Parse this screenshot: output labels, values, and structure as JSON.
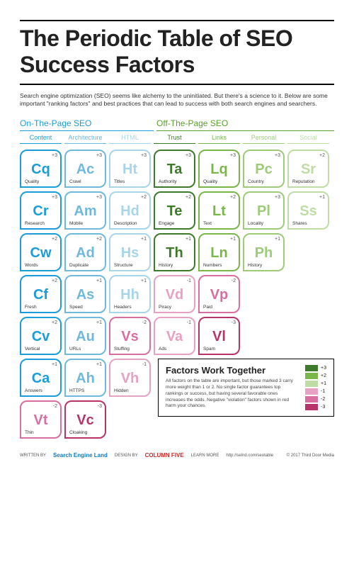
{
  "title": "The Periodic Table of SEO Success Factors",
  "intro": "Search engine optimization (SEO) seems like alchemy to the uninitiated. But there's a science to it. Below are some important \"ranking factors\" and best practices that can lead to success with both search engines and searchers.",
  "sections": {
    "on": {
      "label": "On-The-Page SEO",
      "color": "#1b9dd9"
    },
    "off": {
      "label": "Off-The-Page SEO",
      "color": "#5aa02c"
    }
  },
  "columns": [
    {
      "label": "Content",
      "color": "#1b9dd9"
    },
    {
      "label": "Architecture",
      "color": "#6fb9dc"
    },
    {
      "label": "HTML",
      "color": "#a8d5ea"
    },
    {
      "label": "Trust",
      "color": "#3d7a2a"
    },
    {
      "label": "Links",
      "color": "#7ab648"
    },
    {
      "label": "Personal",
      "color": "#9ecb7a"
    },
    {
      "label": "Social",
      "color": "#bfdca5"
    }
  ],
  "grid": [
    [
      {
        "sym": "Cq",
        "lab": "Quality",
        "wt": "+3",
        "color": "#1b9dd9"
      },
      {
        "sym": "Ac",
        "lab": "Crawl",
        "wt": "+3",
        "color": "#6fb9dc"
      },
      {
        "sym": "Ht",
        "lab": "Titles",
        "wt": "+3",
        "color": "#a8d5ea"
      },
      {
        "sym": "Ta",
        "lab": "Authority",
        "wt": "+3",
        "color": "#3d7a2a"
      },
      {
        "sym": "Lq",
        "lab": "Quality",
        "wt": "+3",
        "color": "#7ab648"
      },
      {
        "sym": "Pc",
        "lab": "Country",
        "wt": "+3",
        "color": "#9ecb7a"
      },
      {
        "sym": "Sr",
        "lab": "Reputation",
        "wt": "+2",
        "color": "#bfdca5"
      }
    ],
    [
      {
        "sym": "Cr",
        "lab": "Research",
        "wt": "+3",
        "color": "#1b9dd9"
      },
      {
        "sym": "Am",
        "lab": "Mobile",
        "wt": "+3",
        "color": "#6fb9dc"
      },
      {
        "sym": "Hd",
        "lab": "Description",
        "wt": "+2",
        "color": "#a8d5ea"
      },
      {
        "sym": "Te",
        "lab": "Engage",
        "wt": "+2",
        "color": "#3d7a2a"
      },
      {
        "sym": "Lt",
        "lab": "Text",
        "wt": "+2",
        "color": "#7ab648"
      },
      {
        "sym": "Pl",
        "lab": "Locality",
        "wt": "+3",
        "color": "#9ecb7a"
      },
      {
        "sym": "Ss",
        "lab": "Shares",
        "wt": "+1",
        "color": "#bfdca5"
      }
    ],
    [
      {
        "sym": "Cw",
        "lab": "Words",
        "wt": "+2",
        "color": "#1b9dd9"
      },
      {
        "sym": "Ad",
        "lab": "Duplicate",
        "wt": "+2",
        "color": "#6fb9dc"
      },
      {
        "sym": "Hs",
        "lab": "Structure",
        "wt": "+1",
        "color": "#a8d5ea"
      },
      {
        "sym": "Th",
        "lab": "History",
        "wt": "+1",
        "color": "#3d7a2a"
      },
      {
        "sym": "Ln",
        "lab": "Numbers",
        "wt": "+1",
        "color": "#7ab648"
      },
      {
        "sym": "Ph",
        "lab": "History",
        "wt": "+1",
        "color": "#9ecb7a"
      },
      null
    ],
    [
      {
        "sym": "Cf",
        "lab": "Fresh",
        "wt": "+2",
        "color": "#1b9dd9"
      },
      {
        "sym": "As",
        "lab": "Speed",
        "wt": "+1",
        "color": "#6fb9dc"
      },
      {
        "sym": "Hh",
        "lab": "Headers",
        "wt": "+1",
        "color": "#a8d5ea"
      },
      {
        "sym": "Vd",
        "lab": "Piracy",
        "wt": "-1",
        "color": "#e7a1c2"
      },
      {
        "sym": "Vp",
        "lab": "Paid",
        "wt": "-2",
        "color": "#d86fa0"
      },
      null,
      null
    ],
    [
      {
        "sym": "Cv",
        "lab": "Vertical",
        "wt": "+2",
        "color": "#1b9dd9"
      },
      {
        "sym": "Au",
        "lab": "URLs",
        "wt": "+1",
        "color": "#6fb9dc"
      },
      {
        "sym": "Vs",
        "lab": "Stuffing",
        "wt": "-2",
        "color": "#d86fa0"
      },
      {
        "sym": "Va",
        "lab": "Ads",
        "wt": "-1",
        "color": "#e7a1c2"
      },
      {
        "sym": "Vl",
        "lab": "Spam",
        "wt": "-3",
        "color": "#b8336a"
      },
      null,
      null
    ],
    [
      {
        "sym": "Ca",
        "lab": "Answers",
        "wt": "+1",
        "color": "#1b9dd9"
      },
      {
        "sym": "Ah",
        "lab": "HTTPS",
        "wt": "+1",
        "color": "#6fb9dc"
      },
      {
        "sym": "Vh",
        "lab": "Hidden",
        "wt": "-1",
        "color": "#e7a1c2"
      },
      null,
      null,
      null,
      null
    ],
    [
      {
        "sym": "Vt",
        "lab": "Thin",
        "wt": "-2",
        "color": "#d86fa0"
      },
      {
        "sym": "Vc",
        "lab": "Cloaking",
        "wt": "-3",
        "color": "#b8336a"
      },
      null,
      null,
      null,
      null,
      null
    ]
  ],
  "sidebox": {
    "title": "Factors Work Together",
    "body": "All factors on the table are important, but those marked 3 carry more weight than 1 or 2. No single factor guarantees top rankings or success, but having several favorable ones increases the odds. Negative \"violation\" factors shown in red harm your chances.",
    "legend": [
      {
        "value": "+3",
        "color": "#3d7a2a"
      },
      {
        "value": "+2",
        "color": "#7ab648"
      },
      {
        "value": "+1",
        "color": "#bfdca5"
      },
      {
        "value": "-1",
        "color": "#e7a1c2"
      },
      {
        "value": "-2",
        "color": "#d86fa0"
      },
      {
        "value": "-3",
        "color": "#b8336a"
      }
    ]
  },
  "footer": {
    "writtenby_label": "WRITTEN BY",
    "brand1": "Search Engine Land",
    "designby_label": "DESIGN BY",
    "brand2": "COLUMN FIVE",
    "learnmore_label": "LEARN MORE",
    "url": "http://selnd.com/seotable",
    "copyright": "© 2017 Third Door Media"
  }
}
